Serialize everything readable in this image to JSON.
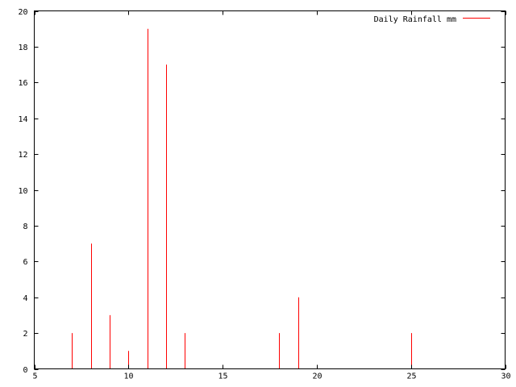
{
  "chart_data": {
    "type": "bar",
    "style": "impulses",
    "title": "",
    "xlabel": "",
    "ylabel": "",
    "xlim": [
      5,
      30
    ],
    "ylim": [
      0,
      20
    ],
    "xticks": [
      5,
      10,
      15,
      20,
      25,
      30
    ],
    "yticks": [
      0,
      2,
      4,
      6,
      8,
      10,
      12,
      14,
      16,
      18,
      20
    ],
    "grid": false,
    "legend_position": "top-right",
    "series": [
      {
        "name": "Daily Rainfall mm",
        "color": "#ff0000",
        "x": [
          7,
          8,
          9,
          10,
          11,
          12,
          13,
          18,
          19,
          25
        ],
        "values": [
          2,
          7,
          3,
          1,
          19,
          17,
          2,
          2,
          4,
          2
        ]
      }
    ]
  }
}
